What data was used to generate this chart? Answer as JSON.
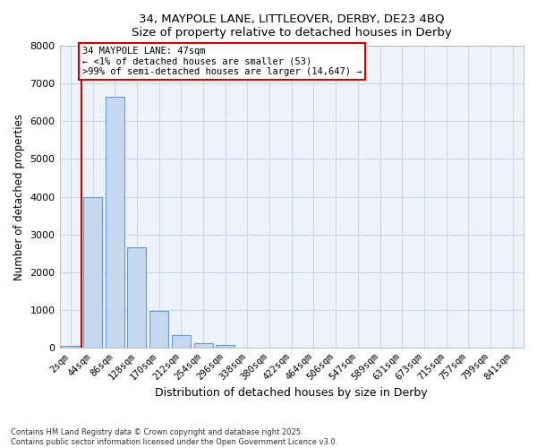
{
  "title_line1": "34, MAYPOLE LANE, LITTLEOVER, DERBY, DE23 4BQ",
  "title_line2": "Size of property relative to detached houses in Derby",
  "xlabel": "Distribution of detached houses by size in Derby",
  "ylabel": "Number of detached properties",
  "categories": [
    "2sqm",
    "44sqm",
    "86sqm",
    "128sqm",
    "170sqm",
    "212sqm",
    "254sqm",
    "296sqm",
    "338sqm",
    "380sqm",
    "422sqm",
    "464sqm",
    "506sqm",
    "547sqm",
    "589sqm",
    "631sqm",
    "673sqm",
    "715sqm",
    "757sqm",
    "799sqm",
    "841sqm"
  ],
  "values": [
    53,
    4000,
    6650,
    2650,
    975,
    330,
    115,
    80,
    8,
    0,
    0,
    0,
    0,
    0,
    0,
    0,
    0,
    0,
    0,
    0,
    0
  ],
  "bar_color": "#c5d8f0",
  "bar_edge_color": "#6699cc",
  "bar_width": 0.85,
  "grid_color": "#c8d4e8",
  "bg_color": "#ffffff",
  "plot_bg_color": "#eef2fa",
  "annotation_text": "34 MAYPOLE LANE: 47sqm\n← <1% of detached houses are smaller (53)\n>99% of semi-detached houses are larger (14,647) →",
  "annotation_box_color": "#cc0000",
  "vline_color": "#cc0000",
  "ylim": [
    0,
    8000
  ],
  "yticks": [
    0,
    1000,
    2000,
    3000,
    4000,
    5000,
    6000,
    7000,
    8000
  ],
  "footer_line1": "Contains HM Land Registry data © Crown copyright and database right 2025.",
  "footer_line2": "Contains public sector information licensed under the Open Government Licence v3.0."
}
